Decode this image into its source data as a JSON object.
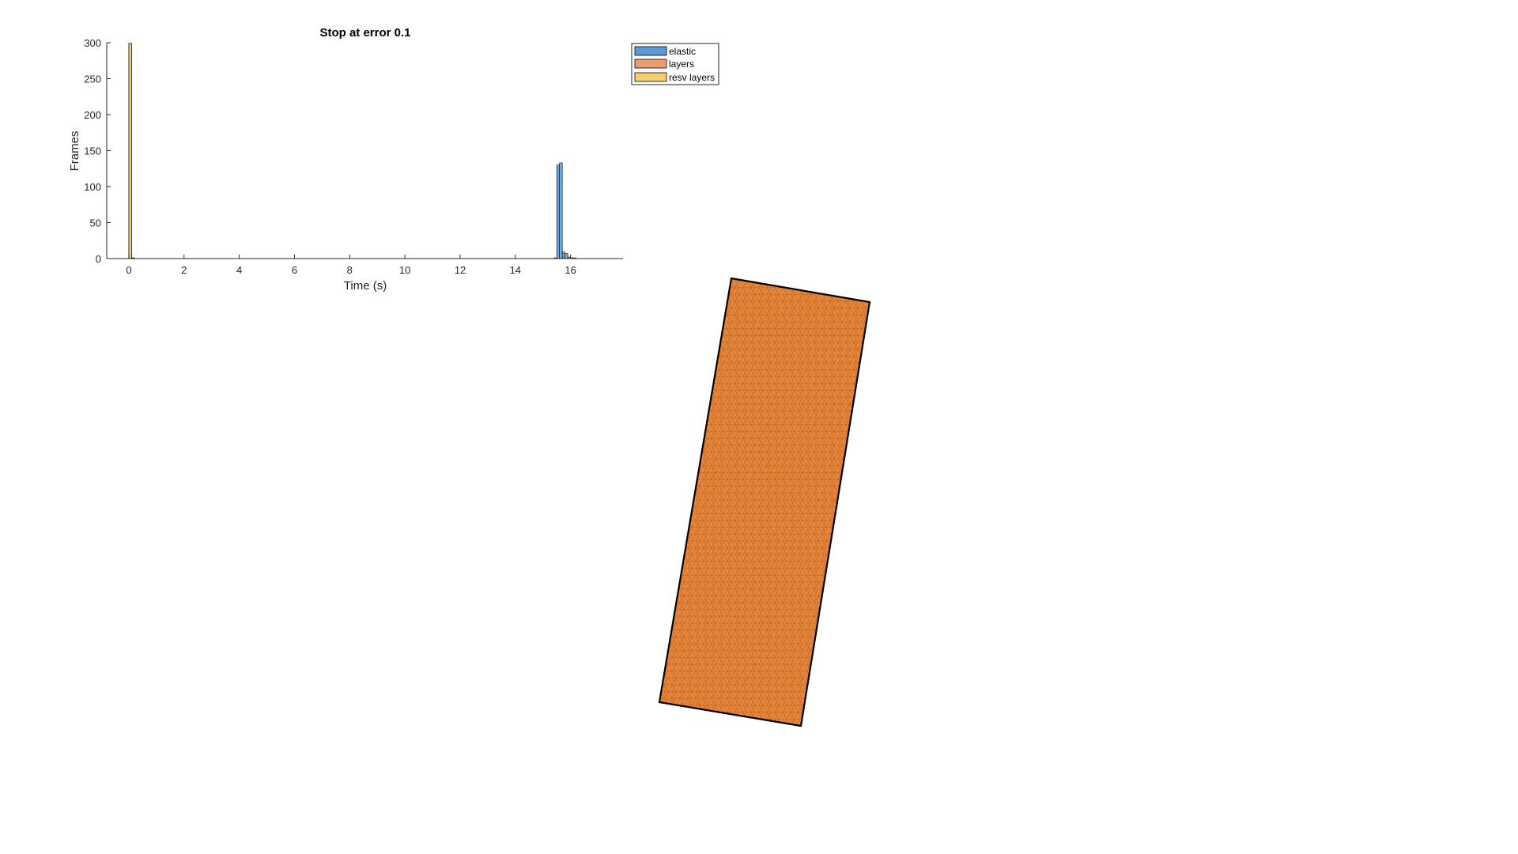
{
  "chart_data": {
    "type": "bar",
    "title": "Stop at error 0.1",
    "xlabel": "Time (s)",
    "ylabel": "Frames",
    "xlim": [
      -0.8,
      17.9
    ],
    "ylim": [
      0,
      300
    ],
    "xticks": [
      "0",
      "2",
      "4",
      "6",
      "8",
      "10",
      "12",
      "14",
      "16"
    ],
    "xtick_values": [
      0,
      2,
      4,
      6,
      8,
      10,
      12,
      14,
      16
    ],
    "yticks": [
      "0",
      "50",
      "100",
      "150",
      "200",
      "250",
      "300"
    ],
    "ytick_values": [
      0,
      50,
      100,
      150,
      200,
      250,
      300
    ],
    "grid": false,
    "legend_location": "top-right, outside",
    "bin_width": 0.1,
    "series": [
      {
        "name": "elastic",
        "color": "#5B9BD5",
        "bins": [
          {
            "x": 15.45,
            "y": 1
          },
          {
            "x": 15.55,
            "y": 130
          },
          {
            "x": 15.65,
            "y": 133
          },
          {
            "x": 15.75,
            "y": 9
          },
          {
            "x": 15.85,
            "y": 7
          },
          {
            "x": 15.95,
            "y": 2
          },
          {
            "x": 16.05,
            "y": 1
          },
          {
            "x": 16.15,
            "y": 1
          }
        ]
      },
      {
        "name": "layers",
        "color": "#EE9B72",
        "bins": [
          {
            "x": 0.05,
            "y": 299
          },
          {
            "x": 0.15,
            "y": 1
          }
        ]
      },
      {
        "name": "resv layers",
        "color": "#F6CF70",
        "bins": [
          {
            "x": 0.05,
            "y": 299
          },
          {
            "x": 0.15,
            "y": 1
          }
        ]
      }
    ]
  },
  "mesh": {
    "fill_color": "#E8873A",
    "line_color": "#B86528",
    "edge_color": "#000000"
  }
}
